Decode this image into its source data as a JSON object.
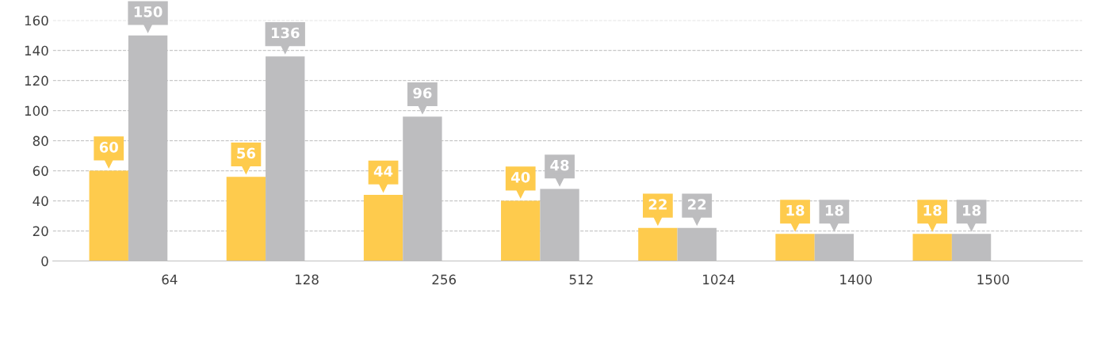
{
  "chart_data": {
    "type": "bar",
    "categories": [
      "64",
      "128",
      "256",
      "512",
      "1024",
      "1400",
      "1500"
    ],
    "series": [
      {
        "color": "#fecb4d",
        "values": [
          60,
          56,
          44,
          40,
          22,
          18,
          18
        ]
      },
      {
        "color": "#bdbdbf",
        "values": [
          150,
          136,
          96,
          48,
          22,
          18,
          18
        ]
      }
    ],
    "ylim": [
      0,
      160
    ],
    "yticks": [
      0,
      20,
      40,
      60,
      80,
      100,
      120,
      140,
      160
    ],
    "grid": "y",
    "line_style": "dashed",
    "data_labels": true
  }
}
